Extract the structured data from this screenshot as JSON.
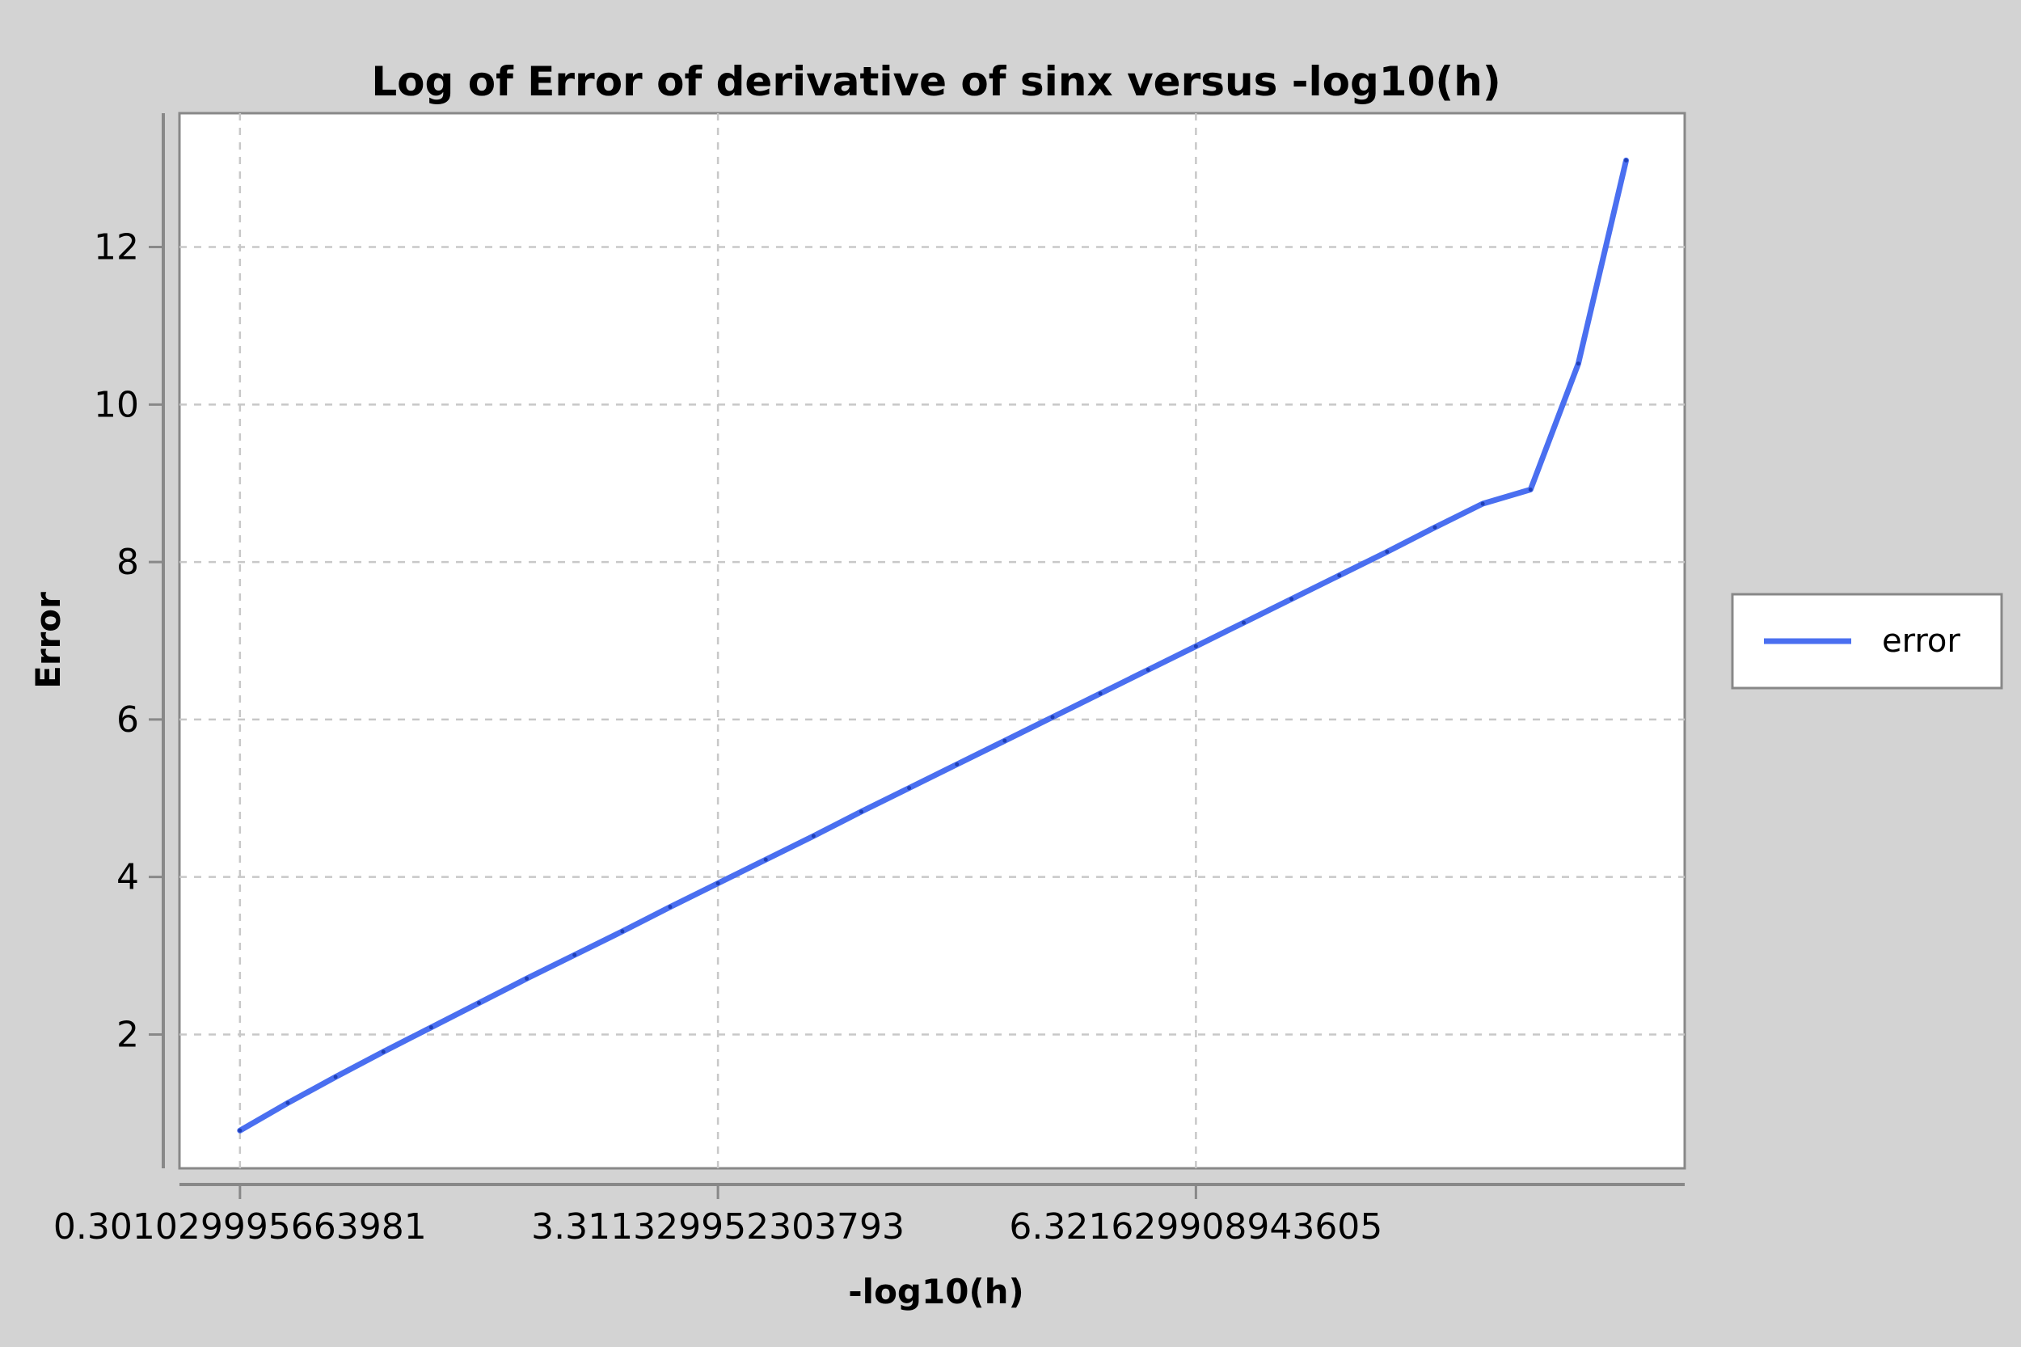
{
  "chart_data": {
    "type": "line",
    "title": "Log of Error of derivative of sinx versus -log10(h)",
    "xlabel": "-log10(h)",
    "ylabel": "Error",
    "x_ticks": [
      "0.301029995663981",
      "3.311329952303793",
      "6.321629908943605"
    ],
    "y_ticks": [
      2,
      4,
      6,
      8,
      10,
      12
    ],
    "xlim": [
      -0.08,
      9.4
    ],
    "ylim": [
      0.3,
      13.7
    ],
    "grid": true,
    "legend_position": "right",
    "series": [
      {
        "name": "error",
        "color": "#4a6ff0",
        "x": [
          0.30103,
          0.60206,
          0.90309,
          1.20412,
          1.50515,
          1.80618,
          2.10721,
          2.40824,
          2.70927,
          3.0103,
          3.31133,
          3.61236,
          3.91339,
          4.21442,
          4.51545,
          4.81648,
          5.11751,
          5.41854,
          5.71957,
          6.0206,
          6.32163,
          6.62266,
          6.92369,
          7.22472,
          7.52575,
          7.82678,
          8.12781,
          8.42884,
          8.72987,
          9.0309
        ],
        "y": [
          0.78,
          1.13,
          1.46,
          1.78,
          2.09,
          2.4,
          2.71,
          3.01,
          3.31,
          3.62,
          3.92,
          4.22,
          4.52,
          4.83,
          5.13,
          5.43,
          5.73,
          6.03,
          6.33,
          6.63,
          6.93,
          7.23,
          7.53,
          7.83,
          8.13,
          8.44,
          8.74,
          8.92,
          10.52,
          13.1
        ]
      }
    ]
  }
}
